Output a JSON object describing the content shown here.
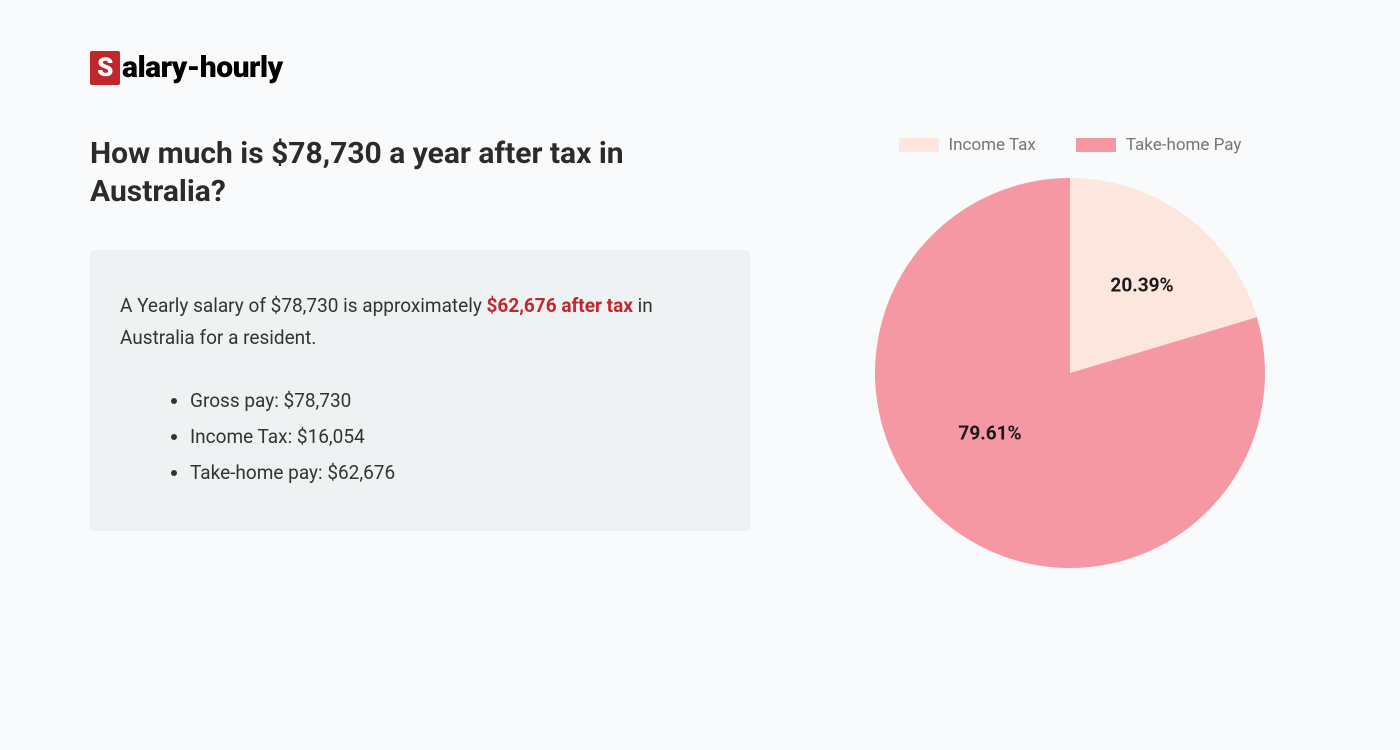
{
  "logo": {
    "badge_letter": "S",
    "rest": "alary-hourly",
    "badge_bg": "#c1272d",
    "badge_fg": "#ffffff"
  },
  "heading": "How much is $78,730 a year after tax in Australia?",
  "summary": {
    "text_before": "A Yearly salary of $78,730 is approximately ",
    "highlight": "$62,676 after tax",
    "text_after": " in Australia for a resident.",
    "highlight_color": "#c1272d",
    "box_bg": "#eef2f3"
  },
  "bullets": [
    "Gross pay: $78,730",
    "Income Tax: $16,054",
    "Take-home pay: $62,676"
  ],
  "chart": {
    "type": "pie",
    "background_color": "#f9fafb",
    "radius": 195,
    "start_angle_deg": 0,
    "slices": [
      {
        "name": "Income Tax",
        "value": 20.39,
        "label": "20.39%",
        "color": "#fce6dd"
      },
      {
        "name": "Take-home Pay",
        "value": 79.61,
        "label": "79.61%",
        "color": "#f598a4"
      }
    ],
    "label_fontsize": 19,
    "label_color": "#1a1a1a",
    "label_positions": [
      {
        "left_pct": 68,
        "top_pct": 28
      },
      {
        "left_pct": 30,
        "top_pct": 65
      }
    ],
    "legend": {
      "fontsize": 17,
      "text_color": "#757575",
      "swatch_w": 40,
      "swatch_h": 14
    }
  },
  "page_bg": "#f9fafb"
}
